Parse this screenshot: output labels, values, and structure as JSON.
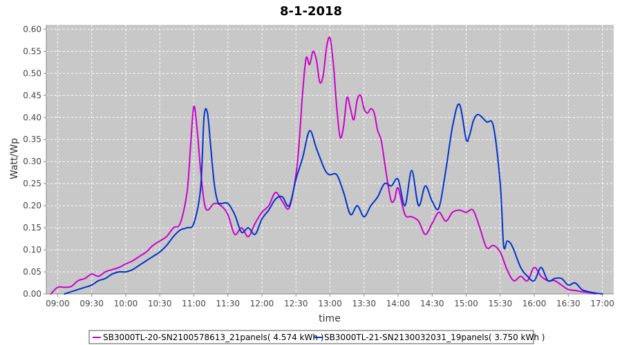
{
  "chart_data": {
    "type": "line",
    "title": "8-1-2018",
    "xlabel": "time",
    "ylabel": "Watt/Wp",
    "ylim": [
      0,
      0.61
    ],
    "y_ticks": [
      "0.00",
      "0.05",
      "0.10",
      "0.15",
      "0.20",
      "0.25",
      "0.30",
      "0.35",
      "0.40",
      "0.45",
      "0.50",
      "0.55",
      "0.60"
    ],
    "x_ticks": [
      "09:00",
      "09:30",
      "10:00",
      "10:30",
      "11:00",
      "11:30",
      "12:00",
      "12:30",
      "13:00",
      "13:30",
      "14:00",
      "14:30",
      "15:00",
      "15:30",
      "16:00",
      "16:30",
      "17:00"
    ],
    "x_range": [
      "08:50",
      "17:10"
    ],
    "grid": true,
    "legend_position": "bottom",
    "series": [
      {
        "name": "SB3000TL-20-SN2100578613_21panels( 4.574 kWh )",
        "color": "#cc00cc",
        "x": [
          "08:54",
          "09:00",
          "09:06",
          "09:12",
          "09:18",
          "09:24",
          "09:30",
          "09:36",
          "09:42",
          "09:48",
          "09:54",
          "10:00",
          "10:06",
          "10:12",
          "10:18",
          "10:24",
          "10:30",
          "10:36",
          "10:42",
          "10:48",
          "10:54",
          "10:57",
          "11:00",
          "11:03",
          "11:06",
          "11:09",
          "11:12",
          "11:18",
          "11:24",
          "11:30",
          "11:36",
          "11:42",
          "11:48",
          "11:54",
          "12:00",
          "12:06",
          "12:12",
          "12:18",
          "12:24",
          "12:30",
          "12:33",
          "12:36",
          "12:39",
          "12:42",
          "12:45",
          "12:48",
          "12:51",
          "12:54",
          "12:57",
          "13:00",
          "13:03",
          "13:06",
          "13:09",
          "13:12",
          "13:15",
          "13:18",
          "13:21",
          "13:24",
          "13:27",
          "13:30",
          "13:33",
          "13:36",
          "13:39",
          "13:42",
          "13:45",
          "13:48",
          "13:51",
          "13:54",
          "13:57",
          "14:00",
          "14:06",
          "14:12",
          "14:18",
          "14:24",
          "14:30",
          "14:36",
          "14:42",
          "14:48",
          "14:54",
          "15:00",
          "15:06",
          "15:12",
          "15:18",
          "15:24",
          "15:30",
          "15:36",
          "15:42",
          "15:48",
          "15:54",
          "16:00",
          "16:06",
          "16:12",
          "16:18",
          "16:24",
          "16:30",
          "16:36",
          "16:42",
          "16:48",
          "16:54"
        ],
        "values": [
          0.0,
          0.015,
          0.015,
          0.017,
          0.03,
          0.035,
          0.045,
          0.04,
          0.05,
          0.055,
          0.06,
          0.068,
          0.075,
          0.085,
          0.095,
          0.11,
          0.12,
          0.13,
          0.15,
          0.16,
          0.23,
          0.33,
          0.425,
          0.37,
          0.28,
          0.21,
          0.19,
          0.205,
          0.2,
          0.18,
          0.135,
          0.15,
          0.13,
          0.16,
          0.185,
          0.2,
          0.23,
          0.21,
          0.195,
          0.27,
          0.35,
          0.46,
          0.535,
          0.52,
          0.55,
          0.53,
          0.48,
          0.495,
          0.56,
          0.58,
          0.52,
          0.42,
          0.355,
          0.38,
          0.445,
          0.42,
          0.395,
          0.44,
          0.45,
          0.42,
          0.41,
          0.42,
          0.41,
          0.37,
          0.35,
          0.3,
          0.25,
          0.21,
          0.215,
          0.24,
          0.18,
          0.175,
          0.165,
          0.135,
          0.16,
          0.185,
          0.165,
          0.185,
          0.19,
          0.185,
          0.19,
          0.15,
          0.105,
          0.11,
          0.095,
          0.055,
          0.03,
          0.04,
          0.03,
          0.06,
          0.04,
          0.03,
          0.03,
          0.02,
          0.01,
          0.008,
          0.005,
          0.003,
          0.0
        ]
      },
      {
        "name": "SB3000TL-21-SN2130032031_19panels( 3.750 kWh )",
        "color": "#0033cc",
        "x": [
          "09:06",
          "09:12",
          "09:18",
          "09:24",
          "09:30",
          "09:36",
          "09:42",
          "09:48",
          "09:54",
          "10:00",
          "10:06",
          "10:12",
          "10:18",
          "10:24",
          "10:30",
          "10:36",
          "10:42",
          "10:48",
          "10:54",
          "11:00",
          "11:06",
          "11:09",
          "11:12",
          "11:15",
          "11:18",
          "11:21",
          "11:24",
          "11:30",
          "11:36",
          "11:42",
          "11:48",
          "11:54",
          "12:00",
          "12:06",
          "12:12",
          "12:18",
          "12:24",
          "12:30",
          "12:36",
          "12:42",
          "12:48",
          "12:54",
          "12:57",
          "13:00",
          "13:06",
          "13:12",
          "13:18",
          "13:24",
          "13:30",
          "13:36",
          "13:42",
          "13:48",
          "13:54",
          "14:00",
          "14:06",
          "14:12",
          "14:18",
          "14:24",
          "14:30",
          "14:36",
          "14:42",
          "14:48",
          "14:54",
          "15:00",
          "15:03",
          "15:06",
          "15:09",
          "15:12",
          "15:18",
          "15:24",
          "15:30",
          "15:33",
          "15:36",
          "15:39",
          "15:42",
          "15:48",
          "15:54",
          "16:00",
          "16:06",
          "16:12",
          "16:18",
          "16:24",
          "16:30",
          "16:36",
          "16:42",
          "16:48",
          "16:54",
          "17:00"
        ],
        "values": [
          0.0,
          0.005,
          0.01,
          0.015,
          0.02,
          0.03,
          0.035,
          0.045,
          0.05,
          0.05,
          0.055,
          0.065,
          0.075,
          0.085,
          0.095,
          0.11,
          0.13,
          0.145,
          0.15,
          0.16,
          0.24,
          0.4,
          0.41,
          0.33,
          0.25,
          0.21,
          0.205,
          0.205,
          0.18,
          0.14,
          0.15,
          0.135,
          0.17,
          0.19,
          0.215,
          0.22,
          0.2,
          0.26,
          0.31,
          0.37,
          0.33,
          0.29,
          0.275,
          0.27,
          0.27,
          0.23,
          0.18,
          0.2,
          0.175,
          0.2,
          0.22,
          0.25,
          0.245,
          0.26,
          0.2,
          0.28,
          0.2,
          0.245,
          0.21,
          0.195,
          0.28,
          0.38,
          0.43,
          0.35,
          0.36,
          0.39,
          0.405,
          0.405,
          0.39,
          0.38,
          0.25,
          0.11,
          0.12,
          0.115,
          0.1,
          0.06,
          0.04,
          0.03,
          0.06,
          0.03,
          0.035,
          0.035,
          0.02,
          0.025,
          0.01,
          0.005,
          0.002,
          0.0
        ]
      }
    ]
  }
}
